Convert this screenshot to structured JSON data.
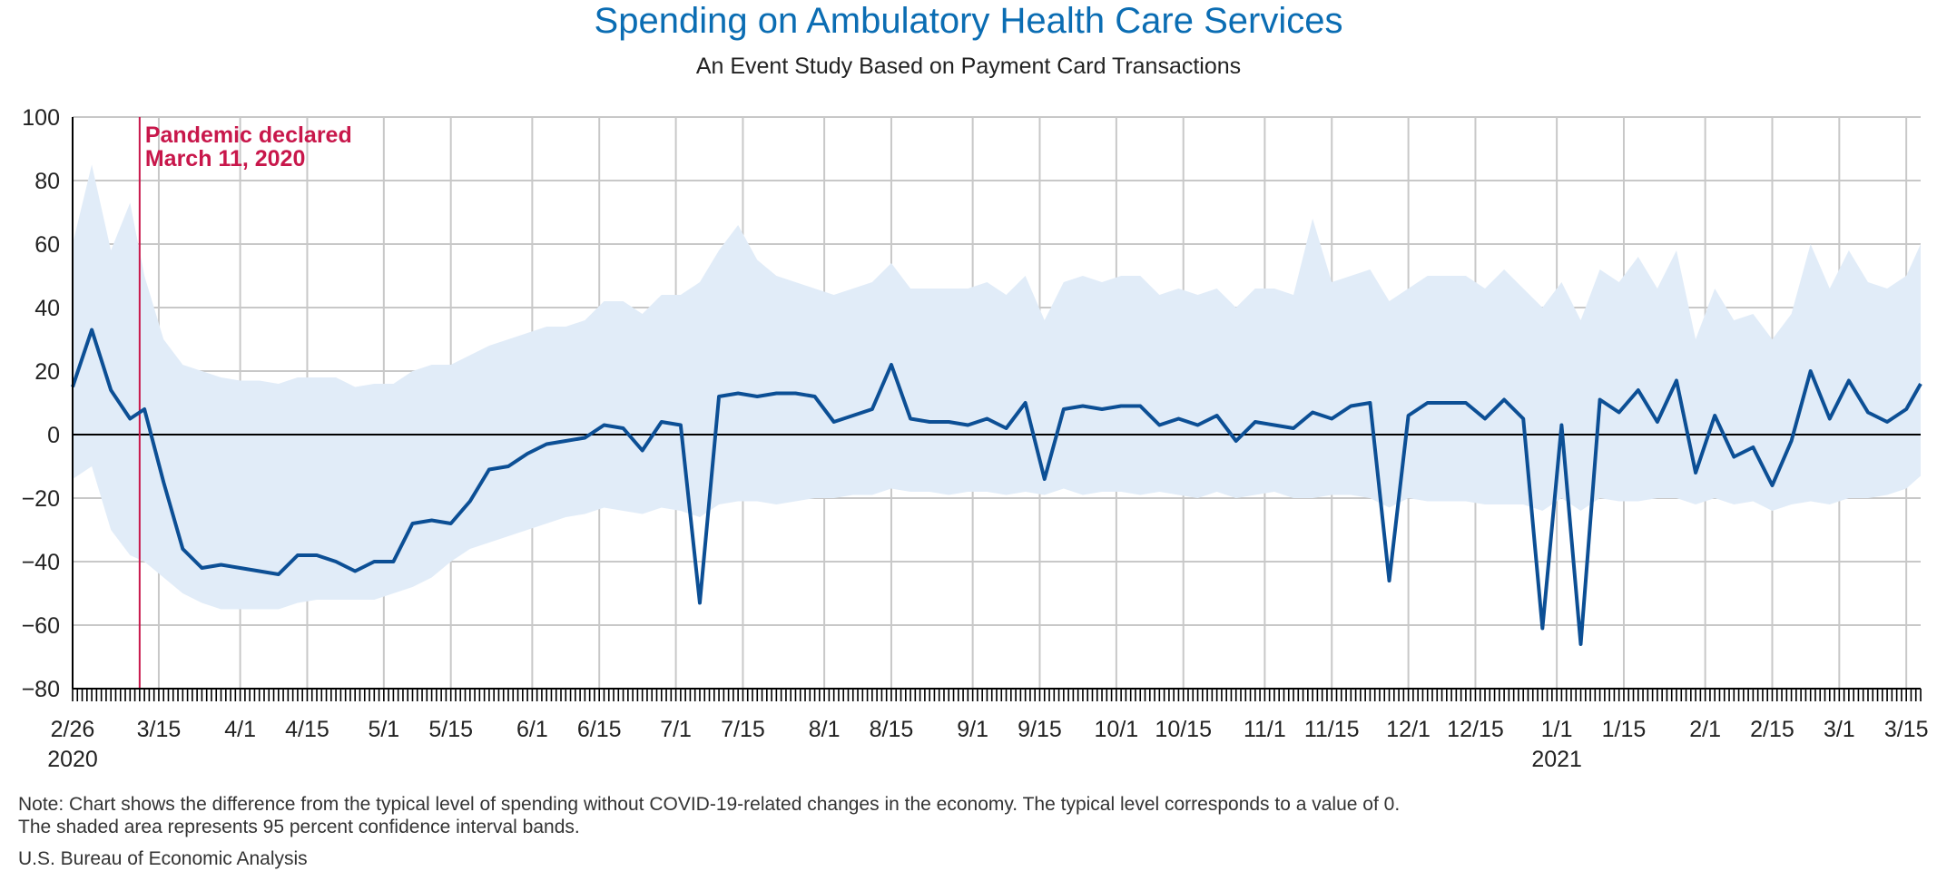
{
  "chart_data": {
    "type": "line",
    "title": "Spending on Ambulatory Health Care Services",
    "subtitle": "An Event Study Based on Payment Card Transactions",
    "x_start": "2020-02-26",
    "x_end": "2021-03-18",
    "ylim": [
      -80,
      100
    ],
    "yticks": [
      100,
      80,
      60,
      40,
      20,
      0,
      -20,
      -40,
      -60,
      -80
    ],
    "grid": true,
    "colors": {
      "line": "#0c4f95",
      "band": "#e1ecf8",
      "zero": "#000000",
      "grid": "#c8c8c8",
      "event": "#c8174b",
      "title": "#0b6db3"
    },
    "xtick_labels": [
      {
        "date": "2020-02-26",
        "label": "2/26",
        "year": "2020"
      },
      {
        "date": "2020-03-15",
        "label": "3/15"
      },
      {
        "date": "2020-04-01",
        "label": "4/1"
      },
      {
        "date": "2020-04-15",
        "label": "4/15"
      },
      {
        "date": "2020-05-01",
        "label": "5/1"
      },
      {
        "date": "2020-05-15",
        "label": "5/15"
      },
      {
        "date": "2020-06-01",
        "label": "6/1"
      },
      {
        "date": "2020-06-15",
        "label": "6/15"
      },
      {
        "date": "2020-07-01",
        "label": "7/1"
      },
      {
        "date": "2020-07-15",
        "label": "7/15"
      },
      {
        "date": "2020-08-01",
        "label": "8/1"
      },
      {
        "date": "2020-08-15",
        "label": "8/15"
      },
      {
        "date": "2020-09-01",
        "label": "9/1"
      },
      {
        "date": "2020-09-15",
        "label": "9/15"
      },
      {
        "date": "2020-10-01",
        "label": "10/1"
      },
      {
        "date": "2020-10-15",
        "label": "10/15"
      },
      {
        "date": "2020-11-01",
        "label": "11/1"
      },
      {
        "date": "2020-11-15",
        "label": "11/15"
      },
      {
        "date": "2020-12-01",
        "label": "12/1"
      },
      {
        "date": "2020-12-15",
        "label": "12/15"
      },
      {
        "date": "2021-01-01",
        "label": "1/1",
        "year": "2021"
      },
      {
        "date": "2021-01-15",
        "label": "1/15"
      },
      {
        "date": "2021-02-01",
        "label": "2/1"
      },
      {
        "date": "2021-02-15",
        "label": "2/15"
      },
      {
        "date": "2021-03-01",
        "label": "3/1"
      },
      {
        "date": "2021-03-15",
        "label": "3/15"
      }
    ],
    "annotation": {
      "date": "2020-03-11",
      "line1": "Pandemic declared",
      "line2": "March 11, 2020"
    },
    "series": [
      {
        "x": [
          "2020-02-26",
          "2020-03-01",
          "2020-03-05",
          "2020-03-09",
          "2020-03-12",
          "2020-03-16",
          "2020-03-20",
          "2020-03-24",
          "2020-03-28",
          "2020-04-01",
          "2020-04-05",
          "2020-04-09",
          "2020-04-13",
          "2020-04-17",
          "2020-04-21",
          "2020-04-25",
          "2020-04-29",
          "2020-05-03",
          "2020-05-07",
          "2020-05-11",
          "2020-05-15",
          "2020-05-19",
          "2020-05-23",
          "2020-05-27",
          "2020-05-31",
          "2020-06-04",
          "2020-06-08",
          "2020-06-12",
          "2020-06-16",
          "2020-06-20",
          "2020-06-24",
          "2020-06-28",
          "2020-07-02",
          "2020-07-06",
          "2020-07-10",
          "2020-07-14",
          "2020-07-18",
          "2020-07-22",
          "2020-07-26",
          "2020-07-30",
          "2020-08-03",
          "2020-08-07",
          "2020-08-11",
          "2020-08-15",
          "2020-08-19",
          "2020-08-23",
          "2020-08-27",
          "2020-08-31",
          "2020-09-04",
          "2020-09-08",
          "2020-09-12",
          "2020-09-16",
          "2020-09-20",
          "2020-09-24",
          "2020-09-28",
          "2020-10-02",
          "2020-10-06",
          "2020-10-10",
          "2020-10-14",
          "2020-10-18",
          "2020-10-22",
          "2020-10-26",
          "2020-10-30",
          "2020-11-03",
          "2020-11-07",
          "2020-11-11",
          "2020-11-15",
          "2020-11-19",
          "2020-11-23",
          "2020-11-27",
          "2020-12-01",
          "2020-12-05",
          "2020-12-09",
          "2020-12-13",
          "2020-12-17",
          "2020-12-21",
          "2020-12-25",
          "2020-12-29",
          "2021-01-02",
          "2021-01-06",
          "2021-01-10",
          "2021-01-14",
          "2021-01-18",
          "2021-01-22",
          "2021-01-26",
          "2021-01-30",
          "2021-02-03",
          "2021-02-07",
          "2021-02-11",
          "2021-02-15",
          "2021-02-19",
          "2021-02-23",
          "2021-02-27",
          "2021-03-03",
          "2021-03-07",
          "2021-03-11",
          "2021-03-15",
          "2021-03-18"
        ],
        "y": [
          15,
          33,
          14,
          5,
          8,
          -15,
          -36,
          -42,
          -41,
          -42,
          -43,
          -44,
          -38,
          -38,
          -40,
          -43,
          -40,
          -40,
          -28,
          -27,
          -28,
          -21,
          -11,
          -10,
          -6,
          -3,
          -2,
          -1,
          3,
          2,
          -5,
          4,
          3,
          -53,
          12,
          13,
          12,
          13,
          13,
          12,
          4,
          6,
          8,
          22,
          5,
          4,
          4,
          3,
          5,
          2,
          10,
          -14,
          8,
          9,
          8,
          9,
          9,
          3,
          5,
          3,
          6,
          -2,
          4,
          3,
          2,
          7,
          5,
          9,
          10,
          -46,
          6,
          10,
          10,
          10,
          5,
          11,
          5,
          -61,
          3,
          -66,
          11,
          7,
          14,
          4,
          17,
          -12,
          6,
          -7,
          -4,
          -16,
          -2,
          20,
          5,
          17,
          7,
          4,
          8,
          16
        ],
        "lower": [
          -14,
          -10,
          -30,
          -38,
          -40,
          -45,
          -50,
          -53,
          -55,
          -55,
          -55,
          -55,
          -53,
          -52,
          -52,
          -52,
          -52,
          -50,
          -48,
          -45,
          -40,
          -36,
          -34,
          -32,
          -30,
          -28,
          -26,
          -25,
          -23,
          -24,
          -25,
          -23,
          -24,
          -26,
          -22,
          -21,
          -21,
          -22,
          -21,
          -20,
          -20,
          -19,
          -19,
          -17,
          -18,
          -18,
          -19,
          -18,
          -18,
          -19,
          -18,
          -19,
          -17,
          -19,
          -18,
          -18,
          -19,
          -18,
          -19,
          -20,
          -18,
          -20,
          -19,
          -18,
          -20,
          -20,
          -19,
          -19,
          -20,
          -23,
          -20,
          -21,
          -21,
          -21,
          -22,
          -22,
          -22,
          -24,
          -20,
          -24,
          -20,
          -21,
          -21,
          -20,
          -20,
          -22,
          -20,
          -22,
          -21,
          -24,
          -22,
          -21,
          -22,
          -20,
          -20,
          -19,
          -17,
          -13
        ],
        "upper": [
          60,
          85,
          58,
          73,
          50,
          30,
          22,
          20,
          18,
          17,
          17,
          16,
          18,
          18,
          18,
          15,
          16,
          16,
          20,
          22,
          22,
          25,
          28,
          30,
          32,
          34,
          34,
          36,
          42,
          42,
          38,
          44,
          44,
          48,
          58,
          66,
          55,
          50,
          48,
          46,
          44,
          46,
          48,
          54,
          46,
          46,
          46,
          46,
          48,
          44,
          50,
          36,
          48,
          50,
          48,
          50,
          50,
          44,
          46,
          44,
          46,
          40,
          46,
          46,
          44,
          68,
          48,
          50,
          52,
          42,
          46,
          50,
          50,
          50,
          46,
          52,
          46,
          40,
          48,
          36,
          52,
          48,
          56,
          46,
          58,
          30,
          46,
          36,
          38,
          30,
          38,
          60,
          46,
          58,
          48,
          46,
          50,
          60
        ]
      }
    ]
  },
  "note_line1": "Note: Chart shows the difference from the typical level of spending without COVID-19-related changes in the economy. The typical level corresponds to a value of 0.",
  "note_line2": "The shaded area represents 95 percent confidence interval bands.",
  "source": "U.S. Bureau of Economic Analysis"
}
